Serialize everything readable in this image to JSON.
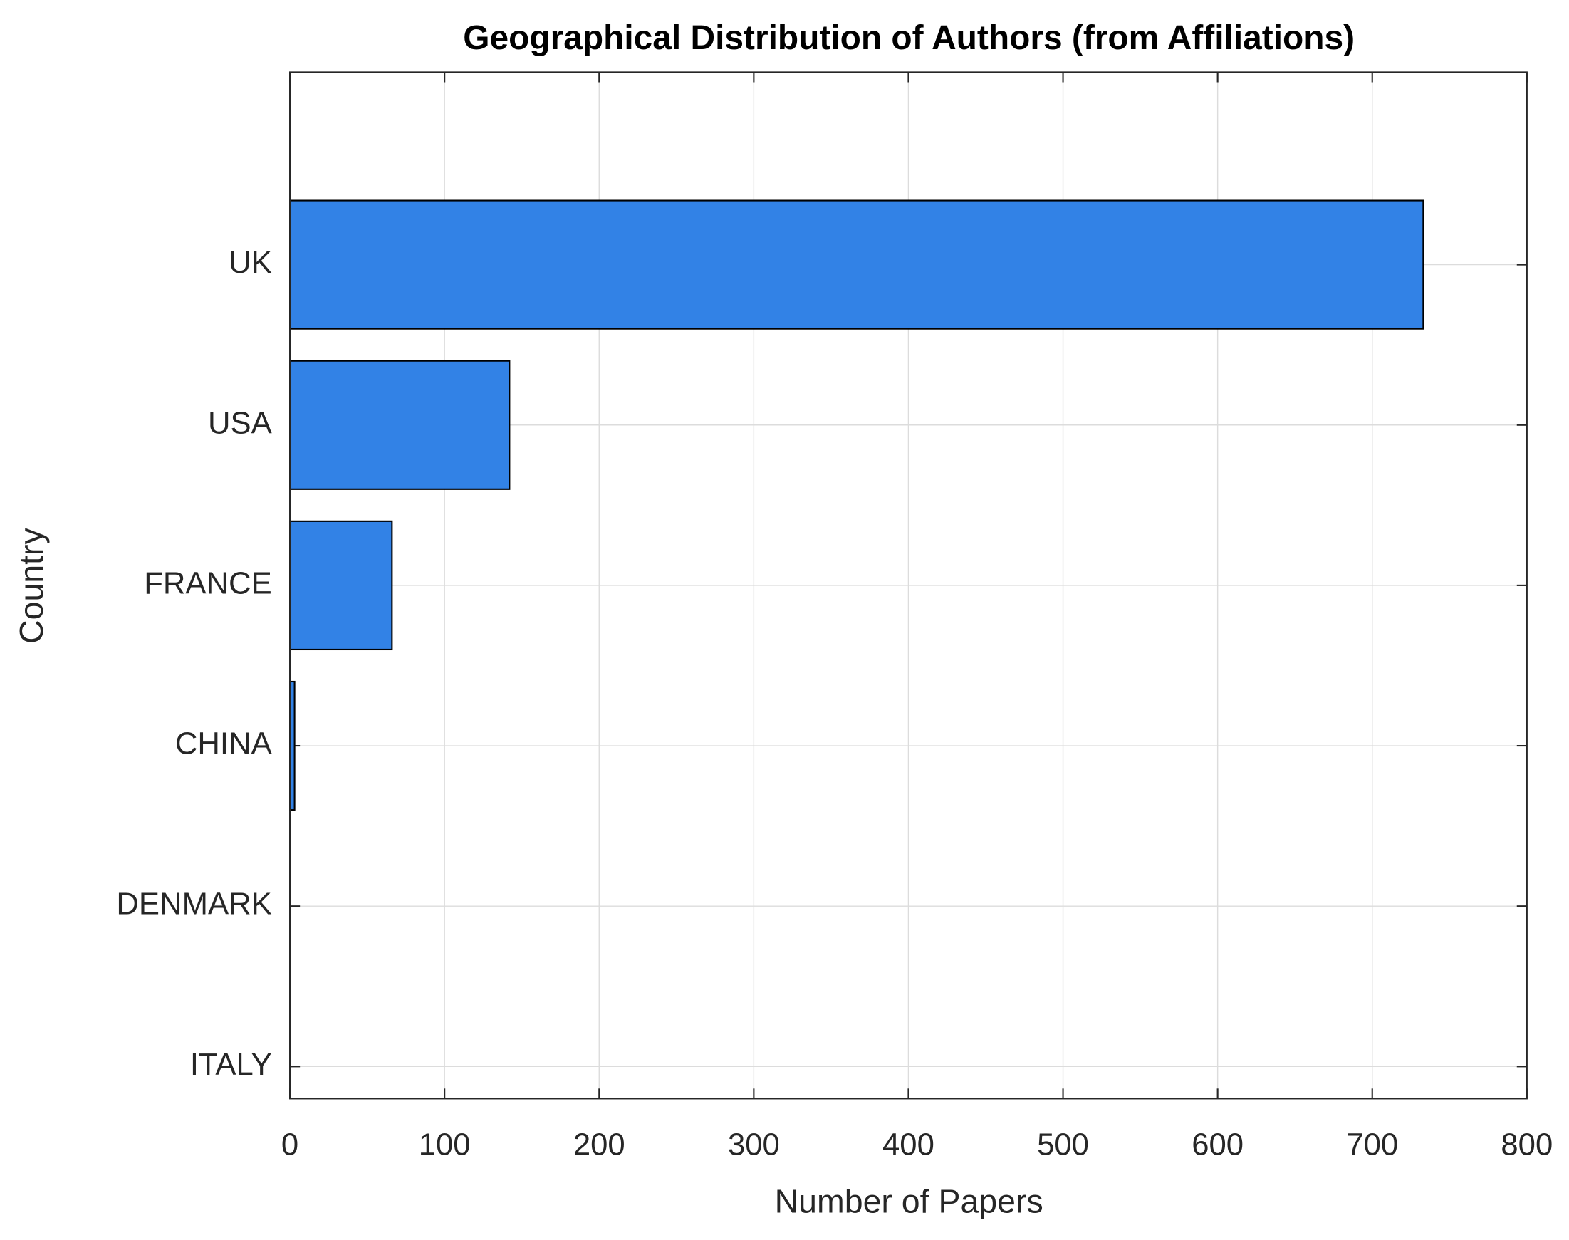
{
  "chart_data": {
    "type": "bar",
    "orientation": "horizontal",
    "title": "Geographical Distribution of Authors (from Affiliations)",
    "x_label": "Number of Papers",
    "y_label": "Country",
    "categories": [
      "UK",
      "USA",
      "FRANCE",
      "CHINA",
      "DENMARK",
      "ITALY"
    ],
    "values": [
      733,
      142,
      66,
      3,
      0,
      0
    ],
    "color": "#3282e6",
    "xlim": [
      0,
      800
    ],
    "xticks": [
      0,
      100,
      200,
      300,
      400,
      500,
      600,
      700,
      800
    ],
    "grid": true
  }
}
